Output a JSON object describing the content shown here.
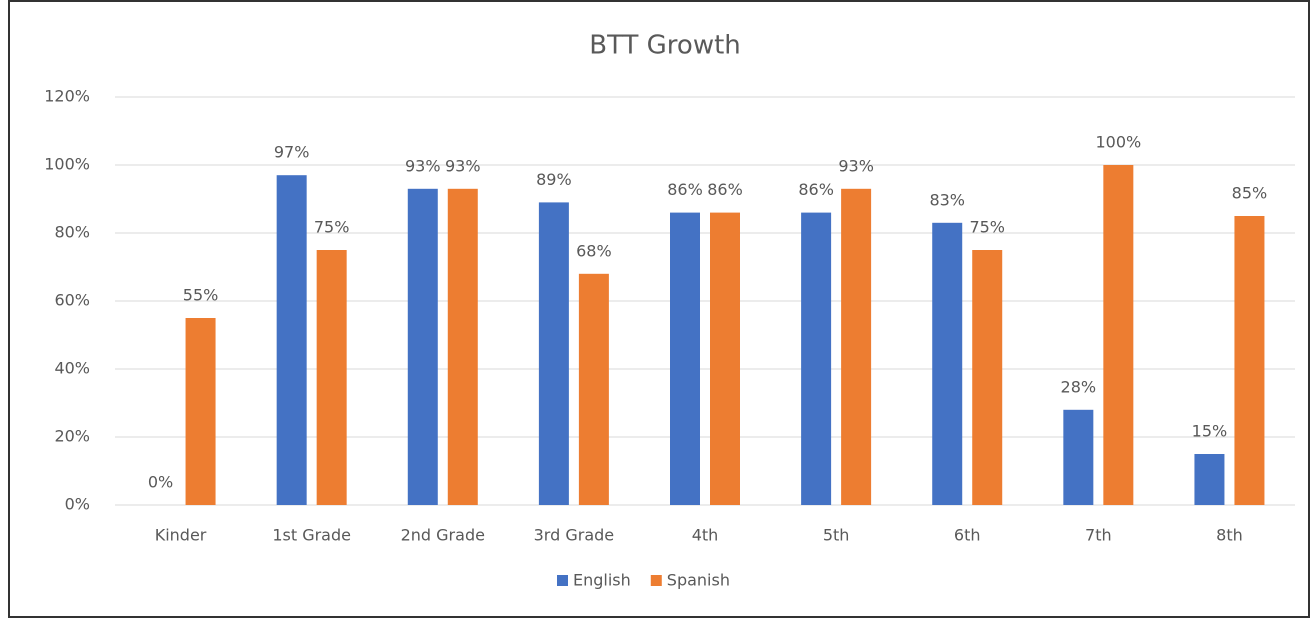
{
  "chart_data": {
    "type": "bar",
    "title": "BTT Growth",
    "categories": [
      "Kinder",
      "1st Grade",
      "2nd Grade",
      "3rd Grade",
      "4th",
      "5th",
      "6th",
      "7th",
      "8th"
    ],
    "series": [
      {
        "name": "English",
        "color": "#4472c4",
        "values": [
          0,
          97,
          93,
          89,
          86,
          86,
          83,
          28,
          15
        ],
        "value_labels": [
          "0%",
          "97%",
          "93%",
          "89%",
          "86%",
          "86%",
          "83%",
          "28%",
          "15%"
        ]
      },
      {
        "name": "Spanish",
        "color": "#ed7d31",
        "values": [
          55,
          75,
          93,
          68,
          86,
          93,
          75,
          100,
          85
        ],
        "value_labels": [
          "55%",
          "75%",
          "93%",
          "68%",
          "86%",
          "93%",
          "75%",
          "100%",
          "85%"
        ]
      }
    ],
    "ylim": [
      0,
      120
    ],
    "yticks": [
      {
        "value": 0,
        "label": "0%"
      },
      {
        "value": 20,
        "label": "20%"
      },
      {
        "value": 40,
        "label": "40%"
      },
      {
        "value": 60,
        "label": "60%"
      },
      {
        "value": 80,
        "label": "80%"
      },
      {
        "value": 100,
        "label": "100%"
      },
      {
        "value": 120,
        "label": "120%"
      }
    ],
    "grid": true,
    "legend": "bottom"
  }
}
